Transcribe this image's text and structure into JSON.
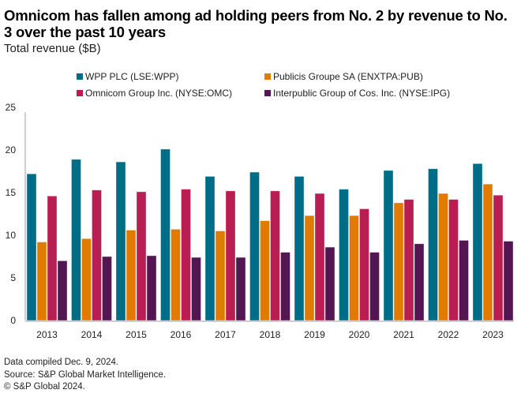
{
  "title": "Omnicom has fallen among ad holding peers from No. 2 by revenue to No. 3 over the past 10 years",
  "subtitle": "Total revenue ($B)",
  "footer": {
    "line1": "Data compiled Dec. 9, 2024.",
    "line2": "Source: S&P Global Market Intelligence.",
    "line3": "© S&P Global 2024."
  },
  "chart_data": {
    "type": "bar",
    "title": "Omnicom has fallen among ad holding peers from No. 2 by revenue to No. 3 over the past 10 years",
    "subtitle": "Total revenue ($B)",
    "xlabel": "",
    "ylabel": "Total revenue ($B)",
    "ylim": [
      0,
      25
    ],
    "yticks": [
      0,
      5,
      10,
      15,
      20,
      25
    ],
    "grid": false,
    "legend_position": "top",
    "categories": [
      "2013",
      "2014",
      "2015",
      "2016",
      "2017",
      "2018",
      "2019",
      "2020",
      "2021",
      "2022",
      "2023"
    ],
    "series": [
      {
        "name": "WPP PLC (LSE:WPP)",
        "color": "#006d88",
        "values": [
          17.2,
          18.9,
          18.6,
          20.1,
          16.9,
          17.4,
          16.9,
          15.4,
          17.6,
          17.8,
          18.4
        ]
      },
      {
        "name": "Publicis Groupe SA (ENXTPA:PUB)",
        "color": "#e07b00",
        "values": [
          9.2,
          9.6,
          10.6,
          10.7,
          10.5,
          11.7,
          12.3,
          12.3,
          13.8,
          14.9,
          16.0
        ]
      },
      {
        "name": "Omnicom Group Inc. (NYSE:OMC)",
        "color": "#b81e51",
        "values": [
          14.6,
          15.3,
          15.1,
          15.4,
          15.2,
          15.2,
          14.9,
          13.1,
          14.2,
          14.2,
          14.7
        ]
      },
      {
        "name": "Interpublic Group of Cos. Inc. (NYSE:IPG)",
        "color": "#531652",
        "values": [
          7.0,
          7.5,
          7.6,
          7.4,
          7.4,
          8.0,
          8.6,
          8.0,
          9.0,
          9.4,
          9.3
        ]
      }
    ]
  }
}
